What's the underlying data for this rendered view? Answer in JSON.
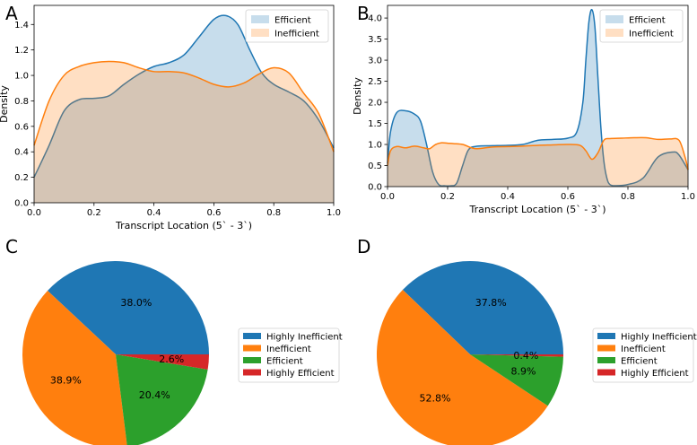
{
  "chart_data": [
    {
      "panel": "A",
      "type": "area",
      "xlabel": "Transcript Location (5` - 3`)",
      "ylabel": "Density",
      "xlim": [
        0.0,
        1.0
      ],
      "ylim": [
        0.0,
        1.55
      ],
      "xticks": [
        "0.0",
        "0.2",
        "0.4",
        "0.6",
        "0.8",
        "1.0"
      ],
      "yticks": [
        "0.0",
        "0.2",
        "0.4",
        "0.6",
        "0.8",
        "1.0",
        "1.2",
        "1.4"
      ],
      "legend": "top-right",
      "series": [
        {
          "name": "Efficient",
          "color": "#1f77b4",
          "x": [
            0,
            0.05,
            0.1,
            0.15,
            0.2,
            0.25,
            0.3,
            0.35,
            0.4,
            0.45,
            0.5,
            0.55,
            0.6,
            0.64,
            0.68,
            0.72,
            0.76,
            0.8,
            0.85,
            0.9,
            0.95,
            1.0
          ],
          "y": [
            0.2,
            0.45,
            0.72,
            0.81,
            0.82,
            0.84,
            0.93,
            1.01,
            1.07,
            1.1,
            1.16,
            1.3,
            1.44,
            1.47,
            1.4,
            1.2,
            1.02,
            0.93,
            0.87,
            0.8,
            0.65,
            0.43
          ]
        },
        {
          "name": "Inefficient",
          "color": "#ff7f0e",
          "x": [
            0,
            0.05,
            0.1,
            0.15,
            0.2,
            0.25,
            0.3,
            0.35,
            0.4,
            0.45,
            0.5,
            0.55,
            0.6,
            0.65,
            0.7,
            0.75,
            0.8,
            0.85,
            0.9,
            0.95,
            1.0
          ],
          "y": [
            0.45,
            0.8,
            1.0,
            1.07,
            1.1,
            1.11,
            1.1,
            1.06,
            1.03,
            1.03,
            1.02,
            0.98,
            0.93,
            0.91,
            0.94,
            1.01,
            1.06,
            1.02,
            0.86,
            0.7,
            0.4
          ]
        }
      ]
    },
    {
      "panel": "B",
      "type": "area",
      "xlabel": "Transcript Location (5` - 3`)",
      "ylabel": "Density",
      "xlim": [
        0.0,
        1.0
      ],
      "ylim": [
        0.0,
        4.3
      ],
      "xticks": [
        "0.0",
        "0.2",
        "0.4",
        "0.6",
        "0.8",
        "1.0"
      ],
      "yticks": [
        "0.0",
        "0.5",
        "1.0",
        "1.5",
        "2.0",
        "2.5",
        "3.0",
        "3.5",
        "4.0"
      ],
      "legend": "top-right",
      "series": [
        {
          "name": "Efficient",
          "color": "#1f77b4",
          "x": [
            0,
            0.01,
            0.03,
            0.06,
            0.09,
            0.11,
            0.13,
            0.15,
            0.17,
            0.19,
            0.21,
            0.23,
            0.25,
            0.27,
            0.3,
            0.35,
            0.4,
            0.45,
            0.5,
            0.55,
            0.6,
            0.63,
            0.65,
            0.66,
            0.67,
            0.68,
            0.69,
            0.7,
            0.71,
            0.72,
            0.73,
            0.74,
            0.76,
            0.8,
            0.85,
            0.9,
            0.95,
            0.97,
            1.0
          ],
          "y": [
            0.55,
            1.3,
            1.75,
            1.8,
            1.72,
            1.55,
            1.0,
            0.35,
            0.05,
            0.02,
            0.02,
            0.08,
            0.5,
            0.88,
            0.96,
            0.97,
            0.98,
            1.0,
            1.1,
            1.12,
            1.15,
            1.3,
            2.0,
            3.0,
            3.9,
            4.2,
            3.8,
            2.6,
            1.4,
            0.6,
            0.2,
            0.05,
            0.02,
            0.05,
            0.2,
            0.7,
            0.82,
            0.75,
            0.4
          ]
        },
        {
          "name": "Inefficient",
          "color": "#ff7f0e",
          "x": [
            0,
            0.01,
            0.03,
            0.06,
            0.09,
            0.12,
            0.14,
            0.16,
            0.18,
            0.2,
            0.22,
            0.25,
            0.28,
            0.3,
            0.35,
            0.4,
            0.45,
            0.5,
            0.55,
            0.6,
            0.64,
            0.66,
            0.68,
            0.7,
            0.72,
            0.74,
            0.78,
            0.82,
            0.86,
            0.9,
            0.94,
            0.97,
            0.99,
            1.0
          ],
          "y": [
            0.5,
            0.85,
            0.95,
            0.92,
            0.96,
            0.92,
            0.9,
            1.0,
            1.04,
            1.03,
            1.02,
            1.0,
            0.92,
            0.9,
            0.94,
            0.95,
            0.96,
            0.98,
            0.99,
            1.0,
            0.98,
            0.85,
            0.65,
            0.8,
            1.1,
            1.14,
            1.15,
            1.16,
            1.16,
            1.12,
            1.13,
            1.1,
            0.7,
            0.4
          ]
        }
      ]
    },
    {
      "panel": "C",
      "type": "pie",
      "legend": "right",
      "slices": [
        {
          "label": "Highly Inefficient",
          "value": 38.0,
          "text": "38.0%",
          "color": "#1f77b4"
        },
        {
          "label": "Inefficient",
          "value": 38.9,
          "text": "38.9%",
          "color": "#ff7f0e"
        },
        {
          "label": "Efficient",
          "value": 20.4,
          "text": "20.4%",
          "color": "#2ca02c"
        },
        {
          "label": "Highly Efficient",
          "value": 2.6,
          "text": "2.6%",
          "color": "#d62728"
        }
      ]
    },
    {
      "panel": "D",
      "type": "pie",
      "legend": "right",
      "slices": [
        {
          "label": "Highly Inefficient",
          "value": 37.8,
          "text": "37.8%",
          "color": "#1f77b4"
        },
        {
          "label": "Inefficient",
          "value": 52.8,
          "text": "52.8%",
          "color": "#ff7f0e"
        },
        {
          "label": "Efficient",
          "value": 8.9,
          "text": "8.9%",
          "color": "#2ca02c"
        },
        {
          "label": "Highly Efficient",
          "value": 0.4,
          "text": "0.4%",
          "color": "#d62728"
        }
      ]
    }
  ]
}
